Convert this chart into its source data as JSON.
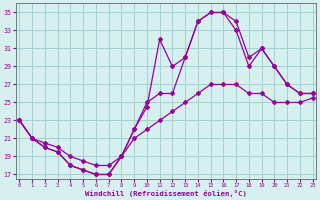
{
  "xlabel": "Windchill (Refroidissement éolien,°C)",
  "background_color": "#d6f0f0",
  "grid_color": "#99cccc",
  "line_color": "#990099",
  "x_ticks": [
    0,
    1,
    2,
    3,
    4,
    5,
    6,
    7,
    8,
    9,
    10,
    11,
    12,
    13,
    14,
    15,
    16,
    17,
    18,
    19,
    20,
    21,
    22,
    23
  ],
  "y_ticks": [
    17,
    19,
    21,
    23,
    25,
    27,
    29,
    31,
    33,
    35
  ],
  "xlim": [
    -0.3,
    23.3
  ],
  "ylim": [
    16.5,
    36
  ],
  "curve1_x": [
    0,
    1,
    2,
    3,
    4,
    5,
    6,
    7,
    8,
    9,
    10,
    11,
    12,
    13,
    14,
    15,
    16,
    17,
    18,
    19,
    20,
    21,
    22,
    23
  ],
  "curve1_y": [
    23,
    21,
    20,
    19.5,
    18,
    17.5,
    17,
    17,
    19,
    22,
    24.5,
    32,
    29,
    30,
    34,
    35,
    35,
    33,
    29,
    31,
    29,
    27,
    26,
    26
  ],
  "curve2_x": [
    0,
    1,
    2,
    3,
    4,
    5,
    6,
    7,
    8,
    9,
    10,
    11,
    12,
    13,
    14,
    15,
    16,
    17,
    18,
    19,
    20,
    21,
    22,
    23
  ],
  "curve2_y": [
    23,
    21,
    20,
    19.5,
    18,
    17.5,
    17,
    17,
    19,
    22,
    25,
    26,
    26,
    30,
    34,
    35,
    35,
    34,
    30,
    31,
    29,
    27,
    26,
    26
  ],
  "curve3_x": [
    0,
    1,
    2,
    3,
    4,
    5,
    6,
    7,
    8,
    9,
    10,
    11,
    12,
    13,
    14,
    15,
    16,
    17,
    18,
    19,
    20,
    21,
    22,
    23
  ],
  "curve3_y": [
    23,
    21,
    20.5,
    20,
    19,
    18.5,
    18,
    18,
    19,
    21,
    22,
    23,
    24,
    25,
    26,
    27,
    27,
    27,
    26,
    26,
    25,
    25,
    25,
    25.5
  ]
}
